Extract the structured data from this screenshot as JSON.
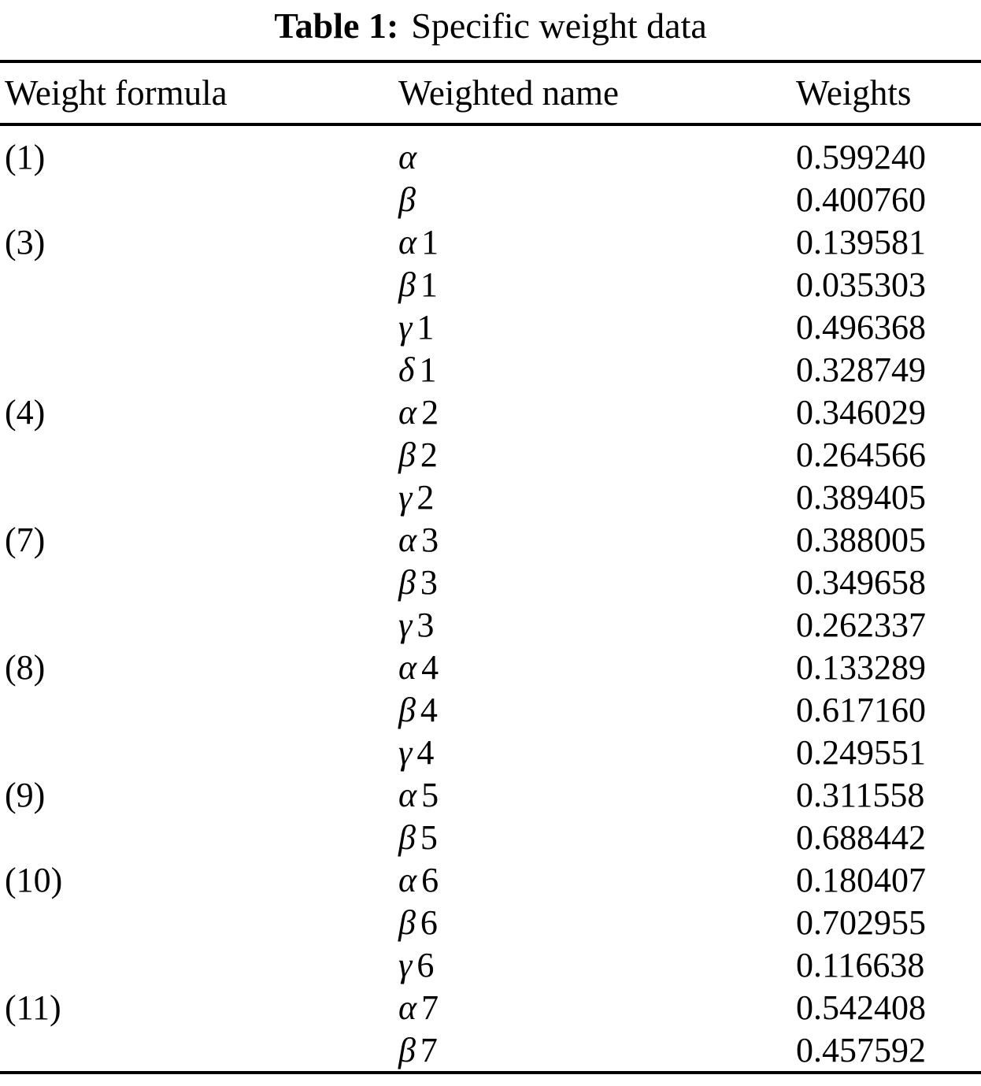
{
  "caption": {
    "label": "Table 1:",
    "text": "Specific weight data"
  },
  "table": {
    "headers": [
      "Weight formula",
      "Weighted name",
      "Weights"
    ],
    "rows": [
      {
        "formula": "(1)",
        "greek": "α",
        "index": "",
        "weight": "0.599240"
      },
      {
        "formula": "",
        "greek": "β",
        "index": "",
        "weight": "0.400760"
      },
      {
        "formula": "(3)",
        "greek": "α",
        "index": "1",
        "weight": "0.139581"
      },
      {
        "formula": "",
        "greek": "β",
        "index": "1",
        "weight": "0.035303"
      },
      {
        "formula": "",
        "greek": "γ",
        "index": "1",
        "weight": "0.496368"
      },
      {
        "formula": "",
        "greek": "δ",
        "index": "1",
        "weight": "0.328749"
      },
      {
        "formula": "(4)",
        "greek": "α",
        "index": "2",
        "weight": "0.346029"
      },
      {
        "formula": "",
        "greek": "β",
        "index": "2",
        "weight": "0.264566"
      },
      {
        "formula": "",
        "greek": "γ",
        "index": "2",
        "weight": "0.389405"
      },
      {
        "formula": "(7)",
        "greek": "α",
        "index": "3",
        "weight": "0.388005"
      },
      {
        "formula": "",
        "greek": "β",
        "index": "3",
        "weight": "0.349658"
      },
      {
        "formula": "",
        "greek": "γ",
        "index": "3",
        "weight": "0.262337"
      },
      {
        "formula": "(8)",
        "greek": "α",
        "index": "4",
        "weight": "0.133289"
      },
      {
        "formula": "",
        "greek": "β",
        "index": "4",
        "weight": "0.617160"
      },
      {
        "formula": "",
        "greek": "γ",
        "index": "4",
        "weight": "0.249551"
      },
      {
        "formula": "(9)",
        "greek": "α",
        "index": "5",
        "weight": "0.311558"
      },
      {
        "formula": "",
        "greek": "β",
        "index": "5",
        "weight": "0.688442"
      },
      {
        "formula": "(10)",
        "greek": "α",
        "index": "6",
        "weight": "0.180407"
      },
      {
        "formula": "",
        "greek": "β",
        "index": "6",
        "weight": "0.702955"
      },
      {
        "formula": "",
        "greek": "γ",
        "index": "6",
        "weight": "0.116638"
      },
      {
        "formula": "(11)",
        "greek": "α",
        "index": "7",
        "weight": "0.542408"
      },
      {
        "formula": "",
        "greek": "β",
        "index": "7",
        "weight": "0.457592"
      }
    ]
  }
}
